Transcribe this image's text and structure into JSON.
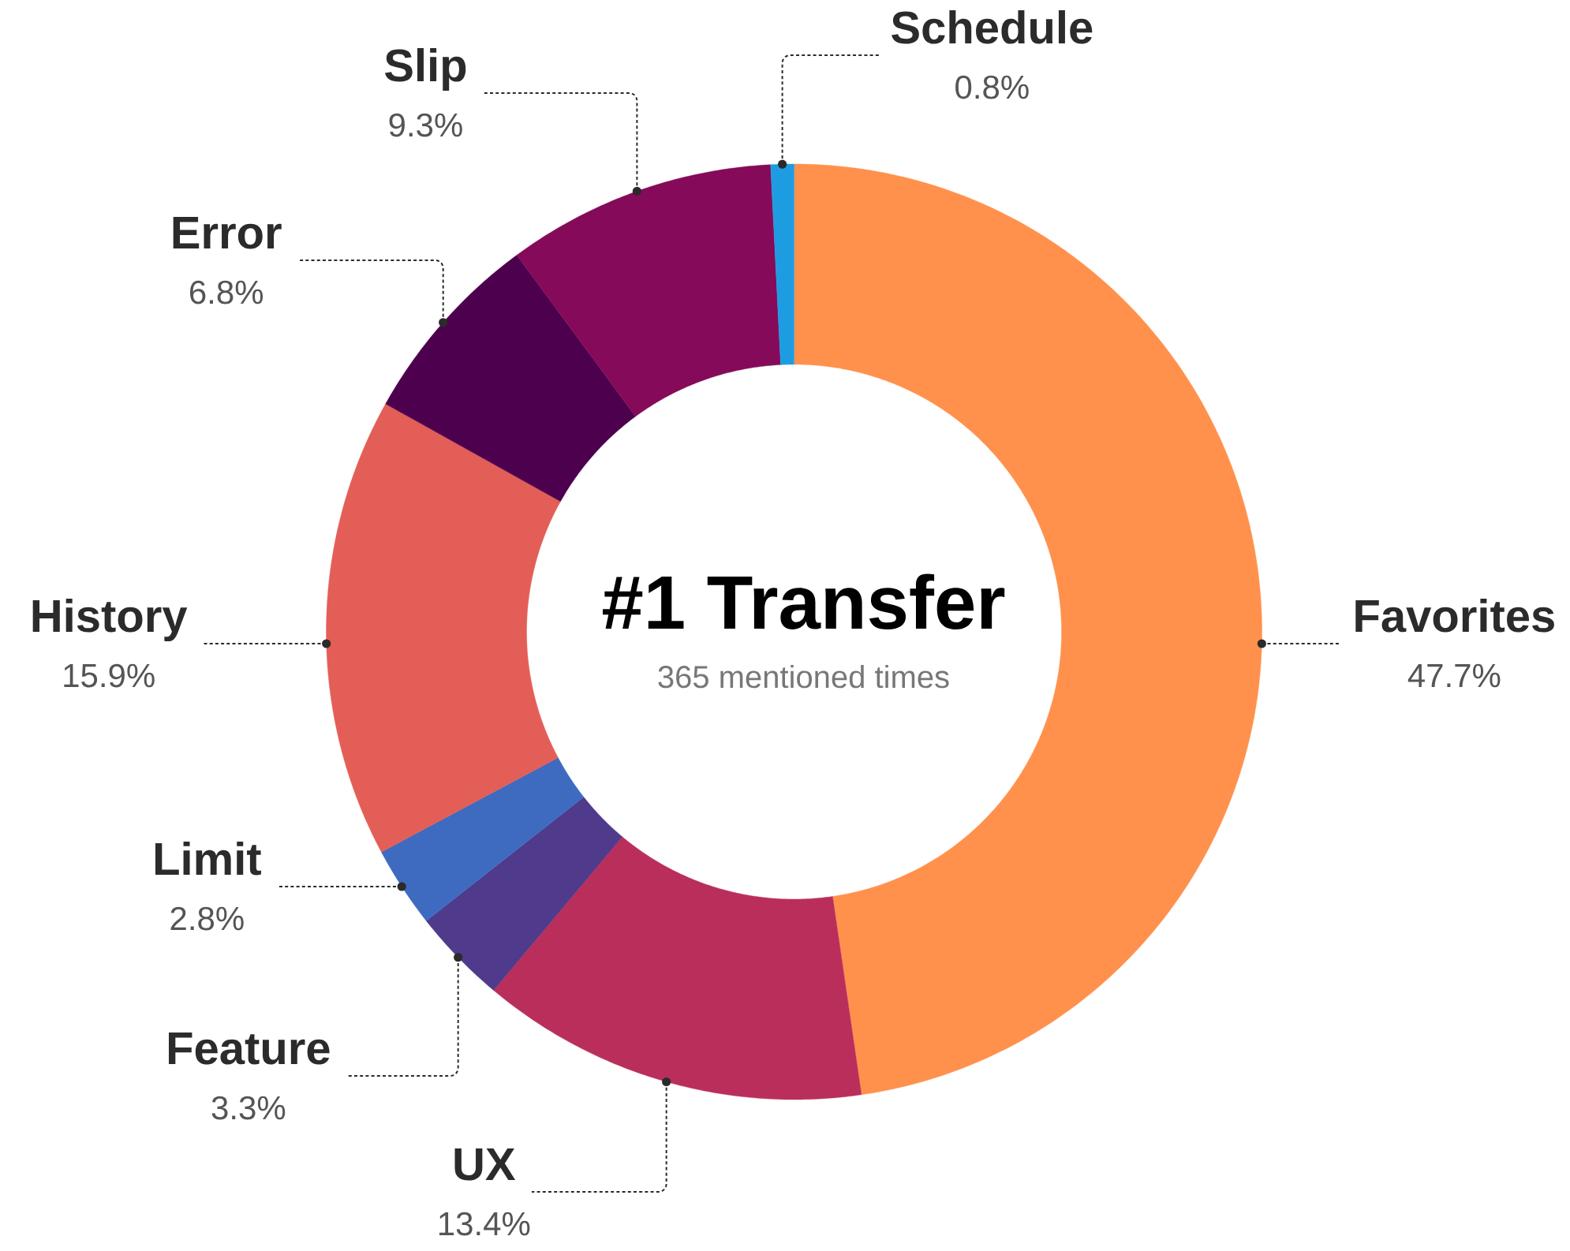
{
  "chart_data": {
    "type": "donut",
    "title": "#1 Transfer",
    "subtitle": "365 mentioned times",
    "categories": [
      "Favorites",
      "UX",
      "Feature",
      "Limit",
      "History",
      "Error",
      "Slip",
      "Schedule"
    ],
    "values": [
      47.7,
      13.4,
      3.3,
      2.8,
      15.9,
      6.8,
      9.3,
      0.8
    ],
    "colors": [
      "#ff914d",
      "#ba2e5b",
      "#4f3a8c",
      "#3e6bc0",
      "#e35e57",
      "#4d004e",
      "#850a59",
      "#1e9ce2"
    ],
    "value_labels": [
      "47.7%",
      "13.4%",
      "3.3%",
      "2.8%",
      "15.9%",
      "6.8%",
      "9.3%",
      "0.8%"
    ]
  }
}
